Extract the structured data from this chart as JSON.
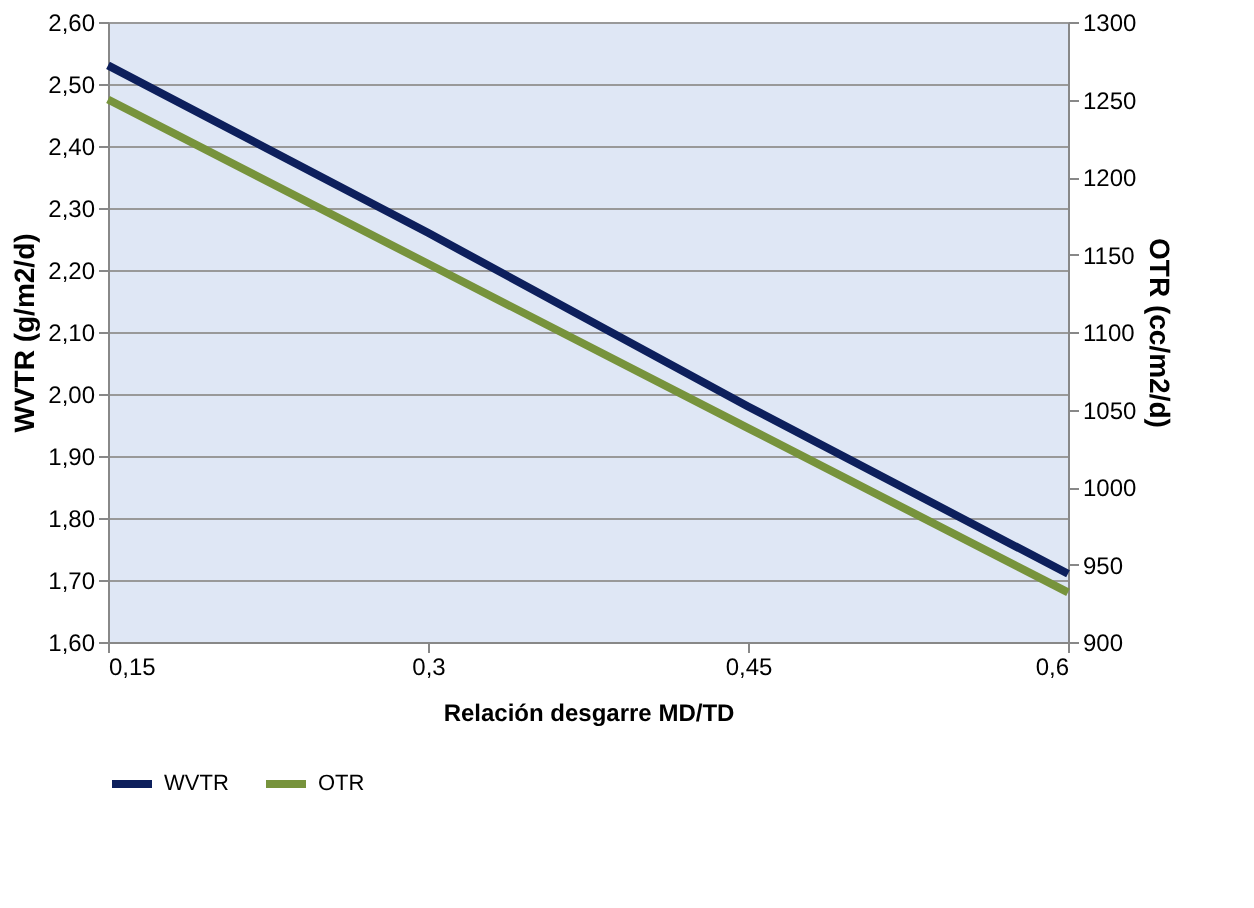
{
  "chart_data": {
    "type": "line",
    "xlabel": "Relación desgarre MD/TD",
    "ylabel": "WVTR (g/m2/d)",
    "y2label": "OTR (cc/m2/d)",
    "x": [
      0.15,
      0.3,
      0.45,
      0.6
    ],
    "series": [
      {
        "name": "WVTR",
        "color": "#0d1f5c",
        "values": [
          2.53,
          2.26,
          1.98,
          1.71
        ]
      },
      {
        "name": "OTR",
        "color": "#77933c",
        "axis": "y2",
        "values": [
          1250,
          1144,
          1038,
          932
        ]
      }
    ],
    "xlim": [
      0.15,
      0.6
    ],
    "xticks": [
      {
        "value": 0.15,
        "label": "0,15"
      },
      {
        "value": 0.3,
        "label": "0,3"
      },
      {
        "value": 0.45,
        "label": "0,45"
      },
      {
        "value": 0.6,
        "label": "0,6"
      }
    ],
    "ylim": [
      1.6,
      2.6
    ],
    "yticks": [
      {
        "value": 1.6,
        "label": "1,60"
      },
      {
        "value": 1.7,
        "label": "1,70"
      },
      {
        "value": 1.8,
        "label": "1,80"
      },
      {
        "value": 1.9,
        "label": "1,90"
      },
      {
        "value": 2.0,
        "label": "2,00"
      },
      {
        "value": 2.1,
        "label": "2,10"
      },
      {
        "value": 2.2,
        "label": "2,20"
      },
      {
        "value": 2.3,
        "label": "2,30"
      },
      {
        "value": 2.4,
        "label": "2,40"
      },
      {
        "value": 2.5,
        "label": "2,50"
      },
      {
        "value": 2.6,
        "label": "2,60"
      }
    ],
    "y2lim": [
      900,
      1300
    ],
    "y2ticks": [
      900,
      950,
      1000,
      1050,
      1100,
      1150,
      1200,
      1250,
      1300
    ],
    "grid": "y",
    "legend": "bottom",
    "marker": "none",
    "line_style": "solid"
  }
}
